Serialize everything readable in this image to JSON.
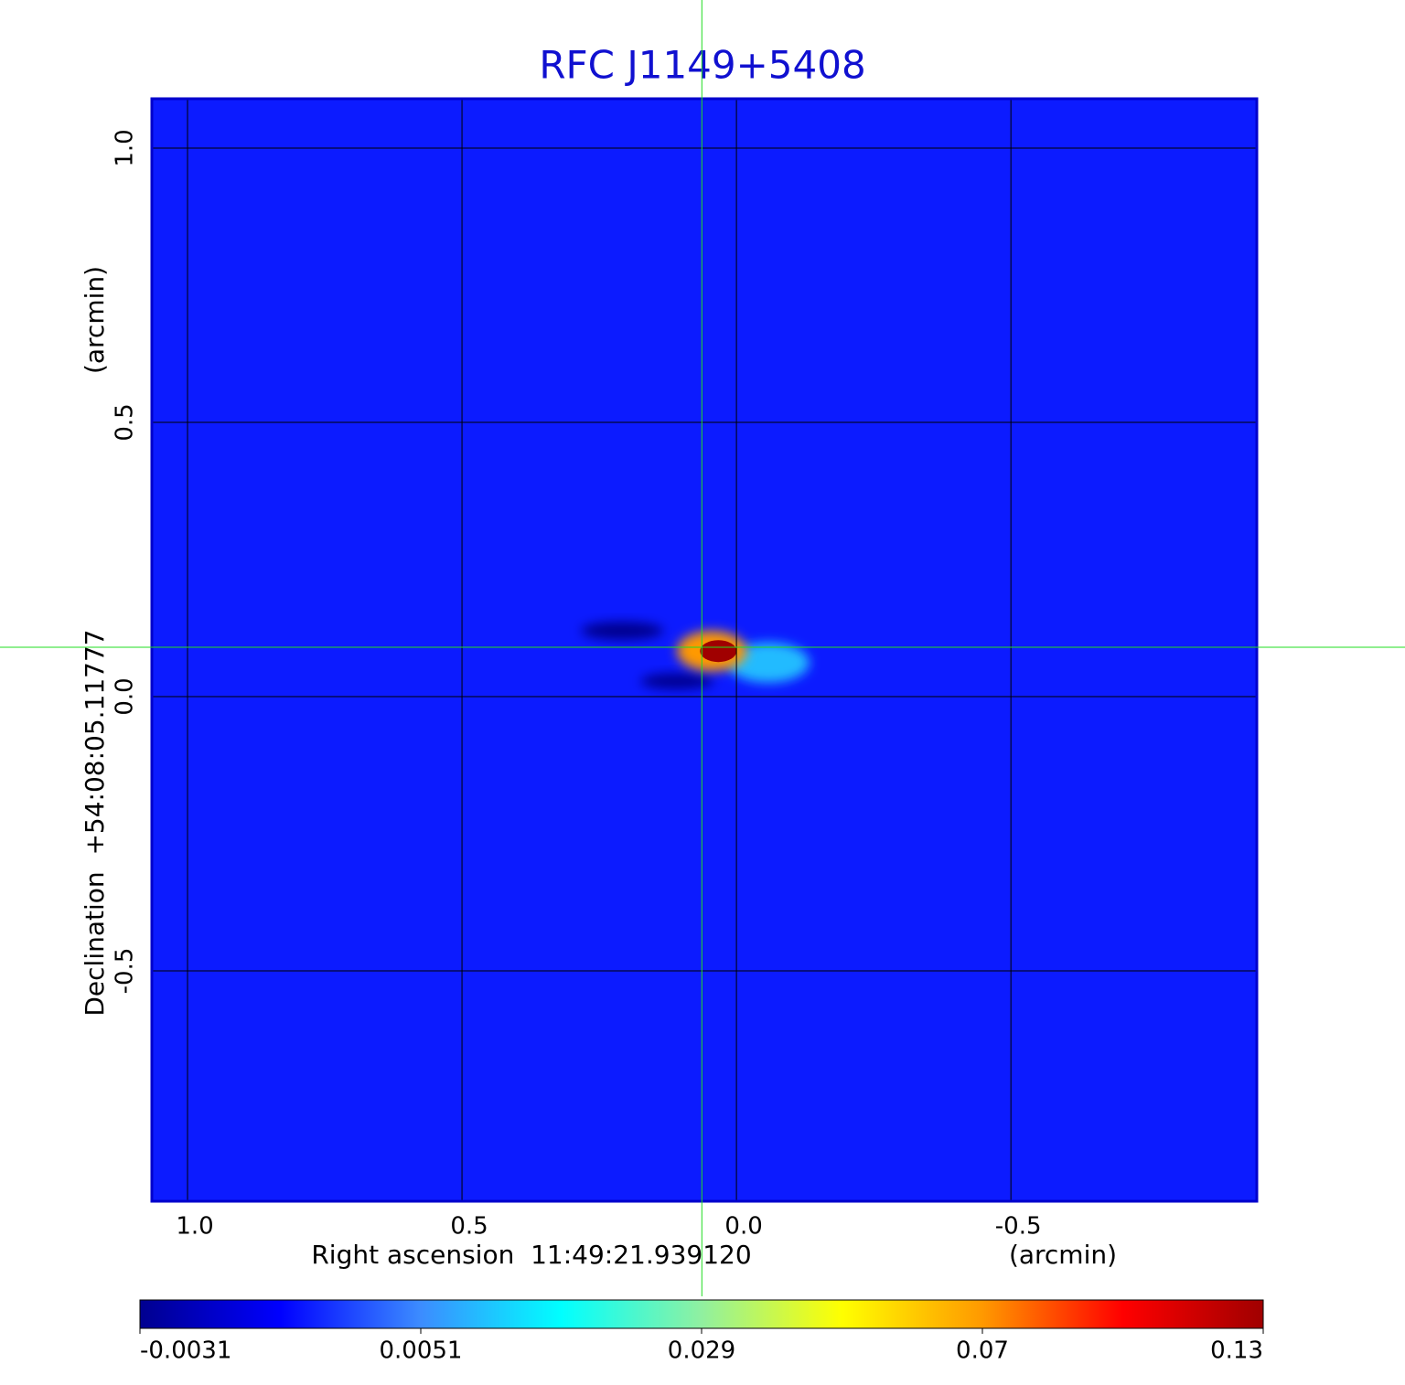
{
  "chart_data": {
    "type": "image",
    "title": "RFC J1149+5408",
    "x_label": "Right ascension  11:49:21.939120",
    "x_unit": "(arcmin)",
    "y_label": "Declination  +54:08:05.11777",
    "y_unit": "(arcmin)",
    "xlim": [
      1.065,
      -0.948
    ],
    "ylim": [
      -0.92,
      1.09
    ],
    "xticks": [
      {
        "value": 1,
        "label": "1.0"
      },
      0.5,
      {
        "value": 0,
        "label": "0.0"
      },
      -0.5
    ],
    "yticks": [
      -0.5,
      {
        "value": 0,
        "label": "0.0"
      },
      0.5,
      {
        "value": 1,
        "label": "1.0"
      }
    ],
    "grid": true,
    "background_value": 0.0018,
    "sources": [
      {
        "x": 0.208,
        "y": 0.12,
        "value": -0.0031
      },
      {
        "x": 0.108,
        "y": 0.028,
        "value": -0.003
      },
      {
        "x": -0.058,
        "y": 0.062,
        "value": 0.01
      },
      {
        "x": 0.045,
        "y": 0.083,
        "value": 0.07
      },
      {
        "x": 0.033,
        "y": 0.083,
        "value": 0.13
      }
    ],
    "crosshair": {
      "x": 0.063,
      "y": 0.09
    },
    "colorbar": {
      "range": [
        -0.0031,
        0.13
      ],
      "ticks": [
        -0.0031,
        0.0051,
        0.029,
        0.07,
        0.13
      ],
      "colormap": [
        "#00008f",
        "#0000ff",
        "#3c8cff",
        "#00ffff",
        "#90f0a0",
        "#ffff00",
        "#ff9900",
        "#ff0000",
        "#a00000"
      ]
    }
  }
}
